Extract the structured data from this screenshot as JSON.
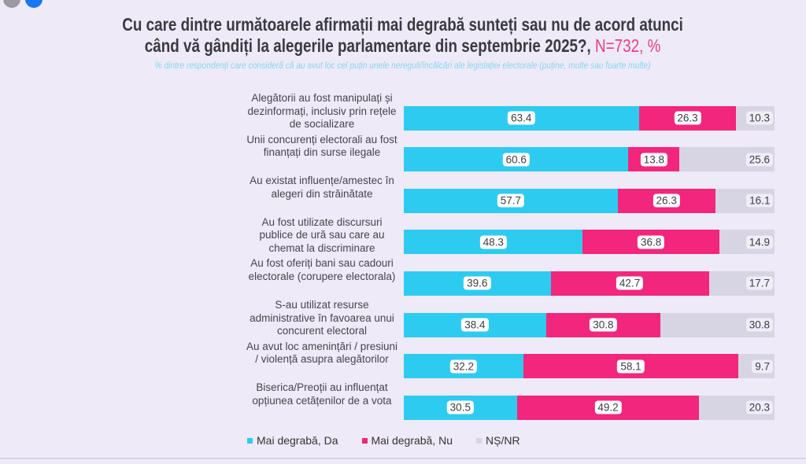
{
  "title": {
    "line1": "Cu care dintre următoarele afirmații mai degrabă sunteți sau nu de acord atunci",
    "line2": "când vă gândiți la alegerile parlamentare din septembrie 2025?,",
    "sample": "N=732, %"
  },
  "subtitle": "% dintre respondenți care consideră că au avut loc cel puțin unele nereguli/încălcări ale legislației electorale (puține, multe sau foarte multe)",
  "chart_data": {
    "type": "bar",
    "orientation": "horizontal",
    "stacked": true,
    "title": "Cu care dintre următoarele afirmații mai degrabă sunteți sau nu de acord atunci când vă gândiți la alegerile parlamentare din septembrie 2025?, N=732, %",
    "xlim": [
      0,
      100
    ],
    "categories": [
      "Alegătorii au fost manipulați și dezinformați, inclusiv prin rețele de socializare",
      "Unii concurenți electorali au fost finanțați din surse ilegale",
      "Au existat influențe/amestec în alegeri din străinătate",
      "Au fost utilizate discursuri publice de ură sau care au chemat la discriminare",
      "Au fost oferiți bani sau cadouri electorale (corupere electorala)",
      "S-au utilizat resurse administrative în favoarea unui concurent electoral",
      "Au avut loc amenințări / presiuni / violență asupra alegătorilor",
      "Biserica/Preoții au influențat opțiunea cetățenilor de a vota"
    ],
    "series": [
      {
        "name": "Mai degrabă, Da",
        "color": "#2ecbf0",
        "values": [
          63.4,
          60.6,
          57.7,
          48.3,
          39.6,
          38.4,
          32.2,
          30.5
        ]
      },
      {
        "name": "Mai degrabă, Nu",
        "color": "#f2267d",
        "values": [
          26.3,
          13.8,
          26.3,
          36.8,
          42.7,
          30.8,
          58.1,
          49.2
        ]
      },
      {
        "name": "NȘ/NR",
        "color": "#d7d4e4",
        "values": [
          10.3,
          25.6,
          16.1,
          14.9,
          17.7,
          30.8,
          9.7,
          20.3
        ]
      }
    ],
    "legend_position": "bottom"
  }
}
